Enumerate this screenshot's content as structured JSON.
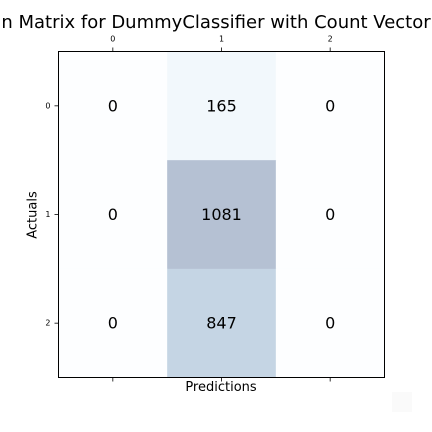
{
  "chart_data": {
    "type": "heatmap",
    "title": "n Matrix for DummyClassifier with Count Vector",
    "xlabel": "Predictions",
    "ylabel": "Actuals",
    "x_tick_position": "top",
    "x_categories": [
      "0",
      "1",
      "2"
    ],
    "y_categories": [
      "0",
      "1",
      "2"
    ],
    "matrix": [
      [
        0,
        165,
        0
      ],
      [
        0,
        1081,
        0
      ],
      [
        0,
        847,
        0
      ]
    ],
    "colormap": "Blues",
    "vmin": 0,
    "vmax": 1081,
    "color_low": "#f7fbff",
    "color_high": "#08306b",
    "cell_alpha": 0.3,
    "grid": false
  }
}
